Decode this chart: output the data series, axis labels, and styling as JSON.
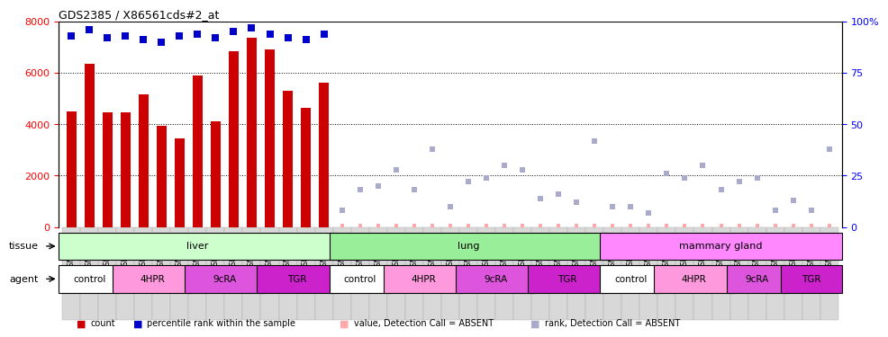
{
  "title": "GDS2385 / X86561cds#2_at",
  "samples": [
    "GSM89873",
    "GSM89875",
    "GSM89878",
    "GSM89881",
    "GSM89841",
    "GSM89843",
    "GSM89846",
    "GSM89870",
    "GSM89858",
    "GSM89861",
    "GSM89864",
    "GSM89867",
    "GSM89849",
    "GSM89852",
    "GSM89855",
    "GSM89876",
    "GSM89879",
    "GSM90168",
    "GSM89842",
    "GSM89844",
    "GSM89847",
    "GSM89871",
    "GSM89859",
    "GSM89862",
    "GSM89865",
    "GSM89868",
    "GSM89850",
    "GSM89853",
    "GSM89856",
    "GSM89874",
    "GSM89877",
    "GSM89880",
    "GSM90169",
    "GSM89845",
    "GSM89848",
    "GSM89872",
    "GSM89860",
    "GSM89863",
    "GSM89866",
    "GSM89869",
    "GSM89851",
    "GSM89854",
    "GSM89857"
  ],
  "count_values": [
    4500,
    6350,
    4450,
    4450,
    5150,
    3950,
    3450,
    5900,
    4100,
    6850,
    7350,
    6900,
    5300,
    4650,
    5600,
    null,
    null,
    null,
    null,
    null,
    null,
    null,
    null,
    null,
    null,
    null,
    null,
    null,
    null,
    null,
    null,
    null,
    null,
    null,
    null,
    null,
    null,
    null,
    null,
    null,
    null,
    null,
    null
  ],
  "percentile_values": [
    93,
    96,
    92,
    93,
    91,
    90,
    93,
    94,
    92,
    95,
    97,
    94,
    92,
    91,
    94,
    null,
    null,
    null,
    null,
    null,
    null,
    null,
    null,
    null,
    null,
    null,
    null,
    null,
    null,
    null,
    null,
    null,
    null,
    null,
    null,
    null,
    null,
    null,
    null,
    null,
    null,
    null,
    null
  ],
  "absent_value": [
    null,
    null,
    null,
    null,
    null,
    null,
    null,
    null,
    null,
    null,
    null,
    null,
    null,
    null,
    null,
    50,
    50,
    50,
    50,
    50,
    50,
    50,
    50,
    50,
    50,
    50,
    50,
    50,
    50,
    50,
    50,
    50,
    50,
    50,
    50,
    50,
    50,
    50,
    50,
    50,
    50,
    50,
    50
  ],
  "absent_rank": [
    null,
    null,
    null,
    null,
    null,
    null,
    null,
    null,
    null,
    null,
    null,
    null,
    null,
    null,
    null,
    8,
    18,
    20,
    28,
    18,
    38,
    10,
    22,
    24,
    30,
    28,
    14,
    16,
    12,
    42,
    10,
    10,
    7,
    26,
    24,
    30,
    18,
    22,
    24,
    8,
    13,
    8,
    38
  ],
  "tissue_groups": [
    {
      "label": "liver",
      "start": 0,
      "end": 15,
      "color": "#ccffcc"
    },
    {
      "label": "lung",
      "start": 15,
      "end": 30,
      "color": "#99ee99"
    },
    {
      "label": "mammary gland",
      "start": 30,
      "end": 43,
      "color": "#ff88ff"
    }
  ],
  "agent_groups": [
    {
      "label": "control",
      "start": 0,
      "end": 3,
      "color": "#ffffff"
    },
    {
      "label": "4HPR",
      "start": 3,
      "end": 7,
      "color": "#ff99dd"
    },
    {
      "label": "9cRA",
      "start": 7,
      "end": 11,
      "color": "#dd55dd"
    },
    {
      "label": "TGR",
      "start": 11,
      "end": 15,
      "color": "#cc22cc"
    },
    {
      "label": "control",
      "start": 15,
      "end": 18,
      "color": "#ffffff"
    },
    {
      "label": "4HPR",
      "start": 18,
      "end": 22,
      "color": "#ff99dd"
    },
    {
      "label": "9cRA",
      "start": 22,
      "end": 26,
      "color": "#dd55dd"
    },
    {
      "label": "TGR",
      "start": 26,
      "end": 30,
      "color": "#cc22cc"
    },
    {
      "label": "control",
      "start": 30,
      "end": 33,
      "color": "#ffffff"
    },
    {
      "label": "4HPR",
      "start": 33,
      "end": 37,
      "color": "#ff99dd"
    },
    {
      "label": "9cRA",
      "start": 37,
      "end": 40,
      "color": "#dd55dd"
    },
    {
      "label": "TGR",
      "start": 40,
      "end": 43,
      "color": "#cc22cc"
    }
  ],
  "bar_color": "#cc0000",
  "percentile_color": "#0000cc",
  "absent_val_color": "#ffaaaa",
  "absent_rank_color": "#aaaacc",
  "ylim_left": [
    0,
    8000
  ],
  "ylim_right": [
    0,
    100
  ],
  "yticks_left": [
    0,
    2000,
    4000,
    6000,
    8000
  ],
  "yticks_right": [
    0,
    25,
    50,
    75,
    100
  ],
  "background_color": "#ffffff",
  "legend_items": [
    {
      "color": "#cc0000",
      "label": "count"
    },
    {
      "color": "#0000cc",
      "label": "percentile rank within the sample"
    },
    {
      "color": "#ffaaaa",
      "label": "value, Detection Call = ABSENT"
    },
    {
      "color": "#aaaacc",
      "label": "rank, Detection Call = ABSENT"
    }
  ]
}
